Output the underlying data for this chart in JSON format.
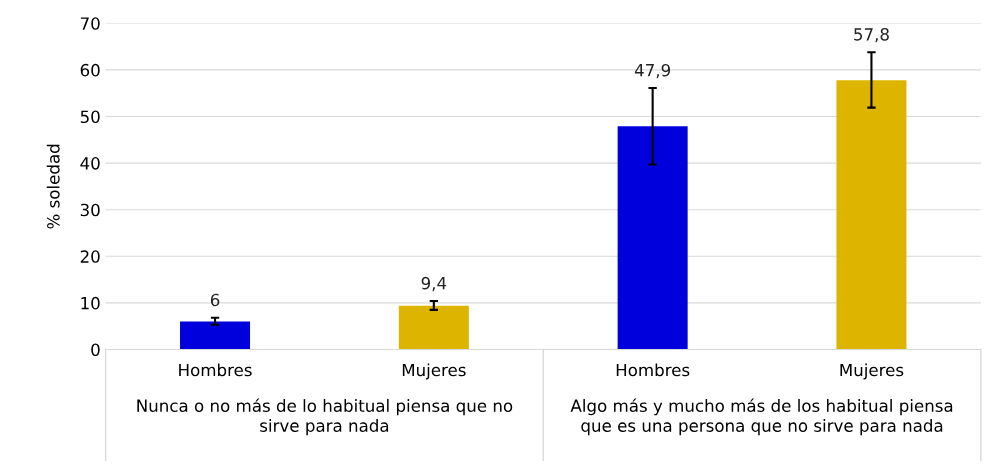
{
  "chart_data": {
    "type": "bar",
    "ylabel": "% soledad",
    "categories": [
      "Hombres",
      "Mujeres",
      "Hombres",
      "Mujeres"
    ],
    "values": [
      6,
      9.4,
      47.9,
      57.8
    ],
    "colors": [
      "#0000dd",
      "#ddb400",
      "#0000dd",
      "#ddb400"
    ],
    "errors": [
      [
        5.3,
        6.8
      ],
      [
        8.5,
        10.4
      ],
      [
        39.7,
        56.1
      ],
      [
        51.9,
        63.8
      ]
    ],
    "value_labels": [
      "6",
      "9,4",
      "47,9",
      "57,8"
    ],
    "annotations": [
      "Nunca o no más de lo habitual piensa que no sirve para nada",
      "Algo más y mucho más de los habitual piensa que es una persona que no sirve para nada"
    ],
    "ylim": [
      0,
      70
    ],
    "yticks": [
      0,
      10,
      20,
      30,
      40,
      50,
      60,
      70
    ],
    "grid": "y"
  }
}
